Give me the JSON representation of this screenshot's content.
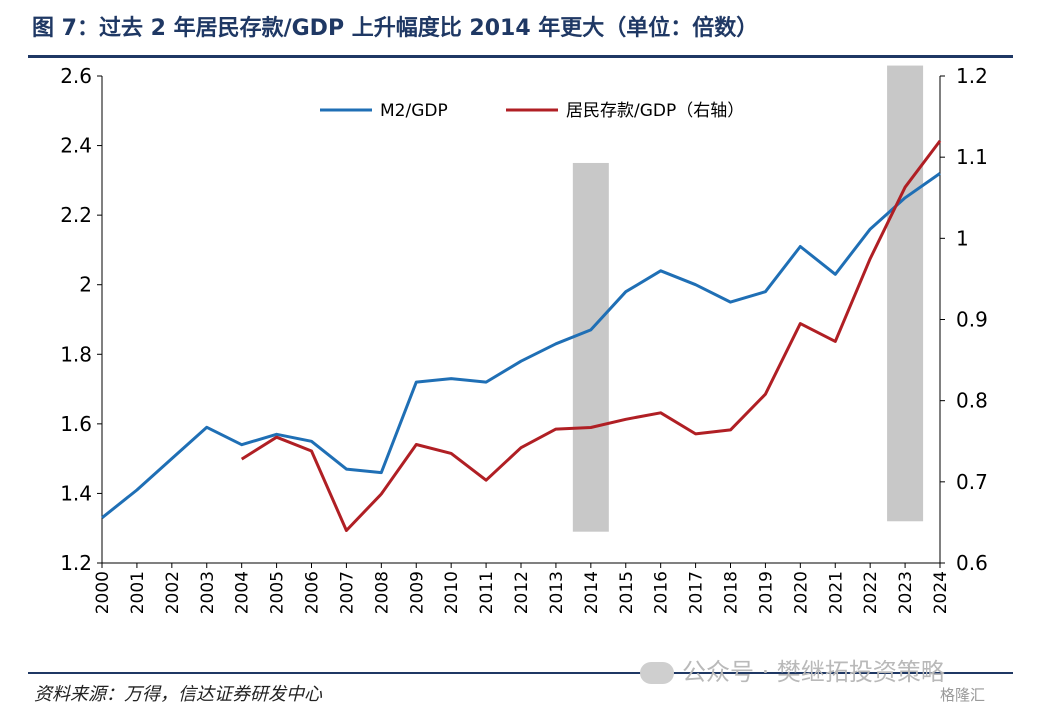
{
  "header": {
    "title": "图 7：过去 2 年居民存款/GDP 上升幅度比 2014 年更大（单位：倍数）"
  },
  "footer": {
    "source": "资料来源：万得，信达证券研发中心",
    "watermark": "公众号 · 樊继拓投资策略",
    "corner_mark": "格隆汇"
  },
  "colors": {
    "m2": "#1f6fb5",
    "deposit": "#b01f24",
    "shade": "#c8c8c8",
    "title": "#1f3864"
  },
  "chart_data": {
    "type": "line",
    "x": [
      "2000",
      "2001",
      "2002",
      "2003",
      "2004",
      "2005",
      "2006",
      "2007",
      "2008",
      "2009",
      "2010",
      "2011",
      "2012",
      "2013",
      "2014",
      "2015",
      "2016",
      "2017",
      "2018",
      "2019",
      "2020",
      "2021",
      "2022",
      "2023",
      "2024"
    ],
    "series": [
      {
        "name": "M2/GDP",
        "axis": "left",
        "color": "#1f6fb5",
        "values": [
          1.33,
          1.41,
          1.5,
          1.59,
          1.54,
          1.57,
          1.55,
          1.47,
          1.46,
          1.72,
          1.73,
          1.72,
          1.78,
          1.83,
          1.87,
          1.98,
          2.04,
          2.0,
          1.95,
          1.98,
          2.11,
          2.03,
          2.16,
          2.25,
          2.32
        ]
      },
      {
        "name": "居民存款/GDP（右轴）",
        "axis": "right",
        "color": "#b01f24",
        "values": [
          null,
          null,
          null,
          null,
          0.728,
          0.755,
          0.738,
          0.64,
          0.685,
          0.746,
          0.735,
          0.702,
          0.742,
          0.765,
          0.767,
          0.777,
          0.785,
          0.759,
          0.764,
          0.808,
          0.895,
          0.873,
          0.975,
          1.063,
          1.12
        ]
      }
    ],
    "shaded_periods": [
      {
        "x": "2014",
        "ylim": [
          1.29,
          2.35
        ]
      },
      {
        "x": "2023",
        "ylim": [
          1.32,
          2.63
        ]
      }
    ],
    "yleft": {
      "ylim": [
        1.2,
        2.6
      ],
      "ticks": [
        "1.2",
        "1.4",
        "1.6",
        "1.8",
        "2",
        "2.2",
        "2.4",
        "2.6"
      ]
    },
    "yright": {
      "ylim": [
        0.6,
        1.2
      ],
      "ticks": [
        "0.6",
        "0.7",
        "0.8",
        "0.9",
        "1",
        "1.1",
        "1.2"
      ]
    },
    "legend_position": "top",
    "grid": false
  }
}
